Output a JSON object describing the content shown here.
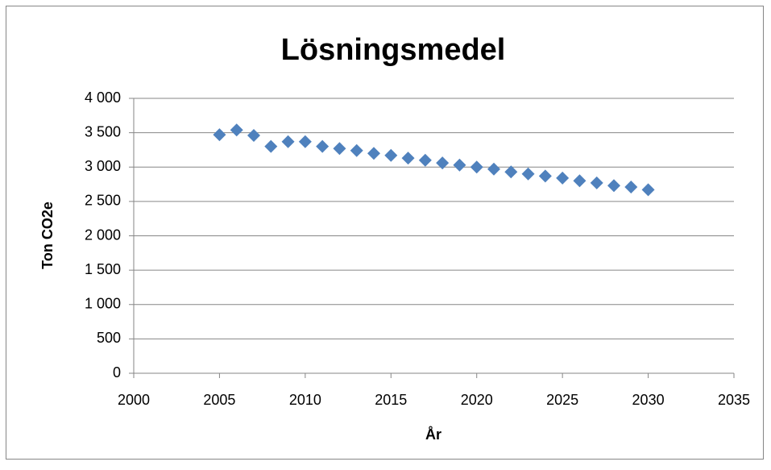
{
  "chart_data": {
    "type": "scatter",
    "title": "Lösningsmedel",
    "x_label": "År",
    "y_label": "Ton CO2e",
    "x": [
      2005,
      2006,
      2007,
      2008,
      2009,
      2010,
      2011,
      2012,
      2013,
      2014,
      2015,
      2016,
      2017,
      2018,
      2019,
      2020,
      2021,
      2022,
      2023,
      2024,
      2025,
      2026,
      2027,
      2028,
      2029,
      2030
    ],
    "values": [
      3470,
      3540,
      3460,
      3300,
      3370,
      3370,
      3300,
      3270,
      3240,
      3200,
      3170,
      3130,
      3100,
      3060,
      3030,
      3000,
      2970,
      2930,
      2900,
      2870,
      2840,
      2800,
      2770,
      2730,
      2710,
      2670
    ],
    "color": "#4f81bd",
    "xlim": [
      2000,
      2035
    ],
    "xticks": [
      2000,
      2005,
      2010,
      2015,
      2020,
      2025,
      2030,
      2035
    ],
    "ylim": [
      0,
      4000
    ],
    "yticks": [
      0,
      500,
      {
        "value": 1000,
        "label": "1 000"
      },
      {
        "value": 1500,
        "label": "1 500"
      },
      {
        "value": 2000,
        "label": "2 000"
      },
      {
        "value": 2500,
        "label": "2 500"
      },
      {
        "value": 3000,
        "label": "3 000"
      },
      {
        "value": 3500,
        "label": "3 500"
      },
      {
        "value": 4000,
        "label": "4 000"
      }
    ],
    "grid": true
  }
}
